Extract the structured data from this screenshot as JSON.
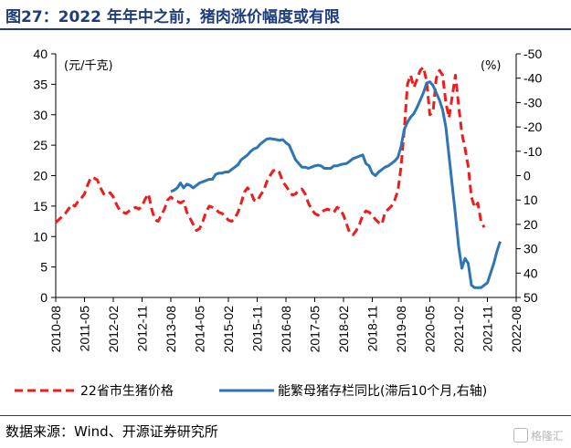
{
  "title": "图27：2022 年年中之前，猪肉涨价幅度或有限",
  "source": "数据来源：Wind、开源证券研究所",
  "watermark": "格隆汇",
  "chart_data": {
    "type": "line",
    "y_left_unit": "(元/千克)",
    "y_right_unit": "(%)",
    "y_left_range": [
      0,
      40
    ],
    "y_left_ticks": [
      0,
      5,
      10,
      15,
      20,
      25,
      30,
      35,
      40
    ],
    "y_right_range": [
      50,
      -50
    ],
    "y_right_inverted": true,
    "y_right_ticks": [
      "-50",
      "-40",
      "-30",
      "-20",
      "-10",
      "0",
      "10",
      "20",
      "30",
      "40",
      "50"
    ],
    "x_tick_labels": [
      "2010-08",
      "2011-05",
      "2012-02",
      "2012-11",
      "2013-08",
      "2014-05",
      "2015-02",
      "2015-11",
      "2016-08",
      "2017-05",
      "2018-02",
      "2018-11",
      "2019-08",
      "2020-05",
      "2021-02",
      "2021-11",
      "2022-08"
    ],
    "series": [
      {
        "name": "22省市生猪价格",
        "axis": "left",
        "color": "#ee1c1c",
        "style": "dashed",
        "points": [
          [
            "2010-08",
            12.3
          ],
          [
            "2010-09",
            12.8
          ],
          [
            "2010-10",
            13.3
          ],
          [
            "2010-11",
            13.8
          ],
          [
            "2010-12",
            14.5
          ],
          [
            "2011-01",
            15.3
          ],
          [
            "2011-02",
            15.0
          ],
          [
            "2011-03",
            15.8
          ],
          [
            "2011-04",
            16.3
          ],
          [
            "2011-05",
            17.0
          ],
          [
            "2011-06",
            18.5
          ],
          [
            "2011-07",
            19.7
          ],
          [
            "2011-08",
            19.6
          ],
          [
            "2011-09",
            19.3
          ],
          [
            "2011-10",
            18.0
          ],
          [
            "2011-11",
            17.0
          ],
          [
            "2011-12",
            16.8
          ],
          [
            "2012-01",
            17.2
          ],
          [
            "2012-02",
            16.5
          ],
          [
            "2012-03",
            15.3
          ],
          [
            "2012-04",
            14.3
          ],
          [
            "2012-05",
            14.0
          ],
          [
            "2012-06",
            13.8
          ],
          [
            "2012-07",
            14.2
          ],
          [
            "2012-08",
            14.5
          ],
          [
            "2012-09",
            14.8
          ],
          [
            "2012-10",
            14.5
          ],
          [
            "2012-11",
            15.0
          ],
          [
            "2012-12",
            16.2
          ],
          [
            "2013-01",
            17.0
          ],
          [
            "2013-02",
            14.5
          ],
          [
            "2013-03",
            12.8
          ],
          [
            "2013-04",
            12.5
          ],
          [
            "2013-05",
            13.5
          ],
          [
            "2013-06",
            14.5
          ],
          [
            "2013-07",
            16.0
          ],
          [
            "2013-08",
            16.5
          ],
          [
            "2013-09",
            16.0
          ],
          [
            "2013-10",
            15.8
          ],
          [
            "2013-11",
            15.5
          ],
          [
            "2013-12",
            15.8
          ],
          [
            "2014-01",
            14.0
          ],
          [
            "2014-02",
            13.0
          ],
          [
            "2014-03",
            12.0
          ],
          [
            "2014-04",
            11.0
          ],
          [
            "2014-05",
            11.3
          ],
          [
            "2014-06",
            12.5
          ],
          [
            "2014-07",
            14.0
          ],
          [
            "2014-08",
            15.0
          ],
          [
            "2014-09",
            14.8
          ],
          [
            "2014-10",
            14.5
          ],
          [
            "2014-11",
            14.0
          ],
          [
            "2014-12",
            13.8
          ],
          [
            "2015-01",
            13.3
          ],
          [
            "2015-02",
            12.7
          ],
          [
            "2015-03",
            12.5
          ],
          [
            "2015-04",
            13.0
          ],
          [
            "2015-05",
            14.0
          ],
          [
            "2015-06",
            15.5
          ],
          [
            "2015-07",
            17.3
          ],
          [
            "2015-08",
            18.0
          ],
          [
            "2015-09",
            17.3
          ],
          [
            "2015-10",
            16.0
          ],
          [
            "2015-11",
            15.8
          ],
          [
            "2015-12",
            16.8
          ],
          [
            "2016-01",
            17.5
          ],
          [
            "2016-02",
            19.0
          ],
          [
            "2016-03",
            20.0
          ],
          [
            "2016-04",
            20.8
          ],
          [
            "2016-05",
            21.0
          ],
          [
            "2016-06",
            20.5
          ],
          [
            "2016-07",
            19.0
          ],
          [
            "2016-08",
            18.3
          ],
          [
            "2016-09",
            17.5
          ],
          [
            "2016-10",
            16.8
          ],
          [
            "2016-11",
            17.0
          ],
          [
            "2016-12",
            17.6
          ],
          [
            "2017-01",
            17.8
          ],
          [
            "2017-02",
            17.0
          ],
          [
            "2017-03",
            15.5
          ],
          [
            "2017-04",
            14.5
          ],
          [
            "2017-05",
            13.8
          ],
          [
            "2017-06",
            13.5
          ],
          [
            "2017-07",
            14.0
          ],
          [
            "2017-08",
            14.3
          ],
          [
            "2017-09",
            14.5
          ],
          [
            "2017-10",
            14.3
          ],
          [
            "2017-11",
            14.0
          ],
          [
            "2017-12",
            14.8
          ],
          [
            "2018-01",
            14.5
          ],
          [
            "2018-02",
            13.5
          ],
          [
            "2018-03",
            12.0
          ],
          [
            "2018-04",
            10.5
          ],
          [
            "2018-05",
            10.3
          ],
          [
            "2018-06",
            11.0
          ],
          [
            "2018-07",
            12.0
          ],
          [
            "2018-08",
            13.5
          ],
          [
            "2018-09",
            14.2
          ],
          [
            "2018-10",
            14.0
          ],
          [
            "2018-11",
            13.5
          ],
          [
            "2018-12",
            12.8
          ],
          [
            "2019-01",
            12.3
          ],
          [
            "2019-02",
            12.0
          ],
          [
            "2019-03",
            14.0
          ],
          [
            "2019-04",
            14.5
          ],
          [
            "2019-05",
            15.0
          ],
          [
            "2019-06",
            16.0
          ],
          [
            "2019-07",
            17.5
          ],
          [
            "2019-08",
            21.5
          ],
          [
            "2019-09",
            27.5
          ],
          [
            "2019-10",
            35.0
          ],
          [
            "2019-11",
            36.5
          ],
          [
            "2019-12",
            34.5
          ],
          [
            "2020-01",
            35.8
          ],
          [
            "2020-02",
            37.3
          ],
          [
            "2020-03",
            37.8
          ],
          [
            "2020-04",
            35.5
          ],
          [
            "2020-05",
            30.0
          ],
          [
            "2020-06",
            30.5
          ],
          [
            "2020-07",
            36.0
          ],
          [
            "2020-08",
            37.3
          ],
          [
            "2020-09",
            36.5
          ],
          [
            "2020-10",
            32.0
          ],
          [
            "2020-11",
            29.5
          ],
          [
            "2020-12",
            33.0
          ],
          [
            "2021-01",
            36.5
          ],
          [
            "2021-02",
            31.5
          ],
          [
            "2021-03",
            27.0
          ],
          [
            "2021-04",
            24.5
          ],
          [
            "2021-05",
            21.5
          ],
          [
            "2021-06",
            16.5
          ],
          [
            "2021-07",
            14.8
          ],
          [
            "2021-08",
            15.5
          ],
          [
            "2021-09",
            12.5
          ],
          [
            "2021-10",
            11.5
          ]
        ]
      },
      {
        "name": "能繁母猪存栏同比(滞后10个月,右轴)",
        "axis": "right",
        "color": "#2e75b6",
        "style": "solid",
        "points": [
          [
            "2013-08",
            6.5
          ],
          [
            "2013-09",
            6.0
          ],
          [
            "2013-10",
            5.0
          ],
          [
            "2013-11",
            3.0
          ],
          [
            "2013-12",
            5.0
          ],
          [
            "2014-01",
            3.5
          ],
          [
            "2014-02",
            4.0
          ],
          [
            "2014-03",
            5.0
          ],
          [
            "2014-04",
            4.0
          ],
          [
            "2014-05",
            3.0
          ],
          [
            "2014-06",
            2.5
          ],
          [
            "2014-07",
            2.0
          ],
          [
            "2014-08",
            1.5
          ],
          [
            "2014-09",
            1.5
          ],
          [
            "2014-10",
            -0.5
          ],
          [
            "2014-11",
            -1.0
          ],
          [
            "2014-12",
            -1.0
          ],
          [
            "2015-01",
            -1.5
          ],
          [
            "2015-02",
            -1.5
          ],
          [
            "2015-03",
            -2.5
          ],
          [
            "2015-04",
            -3.5
          ],
          [
            "2015-05",
            -4.5
          ],
          [
            "2015-06",
            -6.5
          ],
          [
            "2015-07",
            -7.5
          ],
          [
            "2015-08",
            -8.5
          ],
          [
            "2015-09",
            -10.0
          ],
          [
            "2015-10",
            -11.0
          ],
          [
            "2015-11",
            -11.5
          ],
          [
            "2015-12",
            -13.0
          ],
          [
            "2016-01",
            -14.0
          ],
          [
            "2016-02",
            -15.0
          ],
          [
            "2016-03",
            -15.2
          ],
          [
            "2016-04",
            -15.0
          ],
          [
            "2016-05",
            -14.8
          ],
          [
            "2016-06",
            -14.5
          ],
          [
            "2016-07",
            -14.8
          ],
          [
            "2016-08",
            -13.5
          ],
          [
            "2016-09",
            -12.5
          ],
          [
            "2016-10",
            -9.5
          ],
          [
            "2016-11",
            -6.5
          ],
          [
            "2016-12",
            -5.0
          ],
          [
            "2017-01",
            -3.5
          ],
          [
            "2017-02",
            -3.5
          ],
          [
            "2017-03",
            -3.0
          ],
          [
            "2017-04",
            -3.5
          ],
          [
            "2017-05",
            -4.0
          ],
          [
            "2017-06",
            -4.3
          ],
          [
            "2017-07",
            -4.0
          ],
          [
            "2017-08",
            -3.0
          ],
          [
            "2017-09",
            -3.0
          ],
          [
            "2017-10",
            -3.0
          ],
          [
            "2017-11",
            -4.0
          ],
          [
            "2017-12",
            -4.0
          ],
          [
            "2018-01",
            -4.5
          ],
          [
            "2018-02",
            -4.8
          ],
          [
            "2018-03",
            -5.0
          ],
          [
            "2018-04",
            -6.0
          ],
          [
            "2018-05",
            -7.0
          ],
          [
            "2018-06",
            -7.5
          ],
          [
            "2018-07",
            -8.0
          ],
          [
            "2018-08",
            -8.5
          ],
          [
            "2018-09",
            -5.0
          ],
          [
            "2018-10",
            -4.0
          ],
          [
            "2018-11",
            -1.0
          ],
          [
            "2018-12",
            0.0
          ],
          [
            "2019-01",
            -1.5
          ],
          [
            "2019-02",
            -2.5
          ],
          [
            "2019-03",
            -3.5
          ],
          [
            "2019-04",
            -4.0
          ],
          [
            "2019-05",
            -5.0
          ],
          [
            "2019-06",
            -6.0
          ],
          [
            "2019-07",
            -7.5
          ],
          [
            "2019-08",
            -12.0
          ],
          [
            "2019-09",
            -19.0
          ],
          [
            "2019-10",
            -22.0
          ],
          [
            "2019-11",
            -24.0
          ],
          [
            "2019-12",
            -25.5
          ],
          [
            "2020-01",
            -28.0
          ],
          [
            "2020-02",
            -31.0
          ],
          [
            "2020-03",
            -34.0
          ],
          [
            "2020-04",
            -38.0
          ],
          [
            "2020-05",
            -38.5
          ],
          [
            "2020-06",
            -37.0
          ],
          [
            "2020-07",
            -34.0
          ],
          [
            "2020-08",
            -31.0
          ],
          [
            "2020-09",
            -27.0
          ],
          [
            "2020-10",
            -20.0
          ],
          [
            "2020-11",
            -8.0
          ],
          [
            "2020-12",
            4.0
          ],
          [
            "2021-01",
            16.0
          ],
          [
            "2021-02",
            29.0
          ],
          [
            "2021-03",
            38.0
          ],
          [
            "2021-04",
            34.0
          ],
          [
            "2021-05",
            36.0
          ],
          [
            "2021-06",
            45.0
          ],
          [
            "2021-07",
            46.0
          ],
          [
            "2021-08",
            46.0
          ],
          [
            "2021-09",
            46.0
          ],
          [
            "2021-10",
            45.0
          ],
          [
            "2021-11",
            44.0
          ],
          [
            "2021-12",
            40.0
          ],
          [
            "2022-01",
            36.0
          ],
          [
            "2022-02",
            31.0
          ],
          [
            "2022-03",
            27.0
          ]
        ]
      }
    ],
    "grid": false,
    "legend_position": "bottom"
  }
}
